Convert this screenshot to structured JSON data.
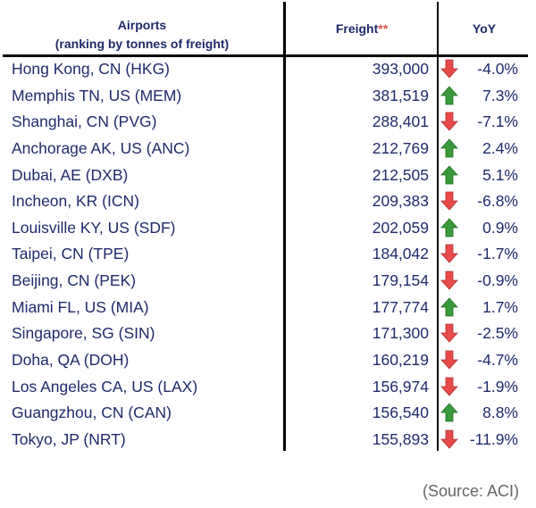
{
  "header": {
    "airports": "Airports",
    "airports_sub": "(ranking by tonnes of freight)",
    "freight": "Freight",
    "freight_mark": "**",
    "yoy": "YoY"
  },
  "colors": {
    "up": "#3a9a3a",
    "down": "#e84a4a",
    "text": "#1f2a6b"
  },
  "rows": [
    {
      "name": "Hong Kong, CN (HKG)",
      "freight": "393,000",
      "dir": "down",
      "yoy": "-4.0%"
    },
    {
      "name": "Memphis TN, US (MEM)",
      "freight": "381,519",
      "dir": "up",
      "yoy": "7.3%"
    },
    {
      "name": "Shanghai, CN (PVG)",
      "freight": "288,401",
      "dir": "down",
      "yoy": "-7.1%"
    },
    {
      "name": "Anchorage AK, US (ANC)",
      "freight": "212,769",
      "dir": "up",
      "yoy": "2.4%"
    },
    {
      "name": "Dubai, AE (DXB)",
      "freight": "212,505",
      "dir": "up",
      "yoy": "5.1%"
    },
    {
      "name": "Incheon, KR (ICN)",
      "freight": "209,383",
      "dir": "down",
      "yoy": "-6.8%"
    },
    {
      "name": "Louisville KY, US (SDF)",
      "freight": "202,059",
      "dir": "up",
      "yoy": "0.9%"
    },
    {
      "name": "Taipei, CN (TPE)",
      "freight": "184,042",
      "dir": "down",
      "yoy": "-1.7%"
    },
    {
      "name": "Beijing, CN (PEK)",
      "freight": "179,154",
      "dir": "down",
      "yoy": "-0.9%"
    },
    {
      "name": "Miami FL, US (MIA)",
      "freight": "177,774",
      "dir": "up",
      "yoy": "1.7%"
    },
    {
      "name": "Singapore, SG (SIN)",
      "freight": "171,300",
      "dir": "down",
      "yoy": "-2.5%"
    },
    {
      "name": "Doha, QA (DOH)",
      "freight": "160,219",
      "dir": "down",
      "yoy": "-4.7%"
    },
    {
      "name": "Los Angeles CA, US (LAX)",
      "freight": "156,974",
      "dir": "down",
      "yoy": "-1.9%"
    },
    {
      "name": "Guangzhou, CN (CAN)",
      "freight": "156,540",
      "dir": "up",
      "yoy": "8.8%"
    },
    {
      "name": "Tokyo, JP (NRT)",
      "freight": "155,893",
      "dir": "down",
      "yoy": "-11.9%"
    }
  ],
  "source": "(Source: ACI)"
}
